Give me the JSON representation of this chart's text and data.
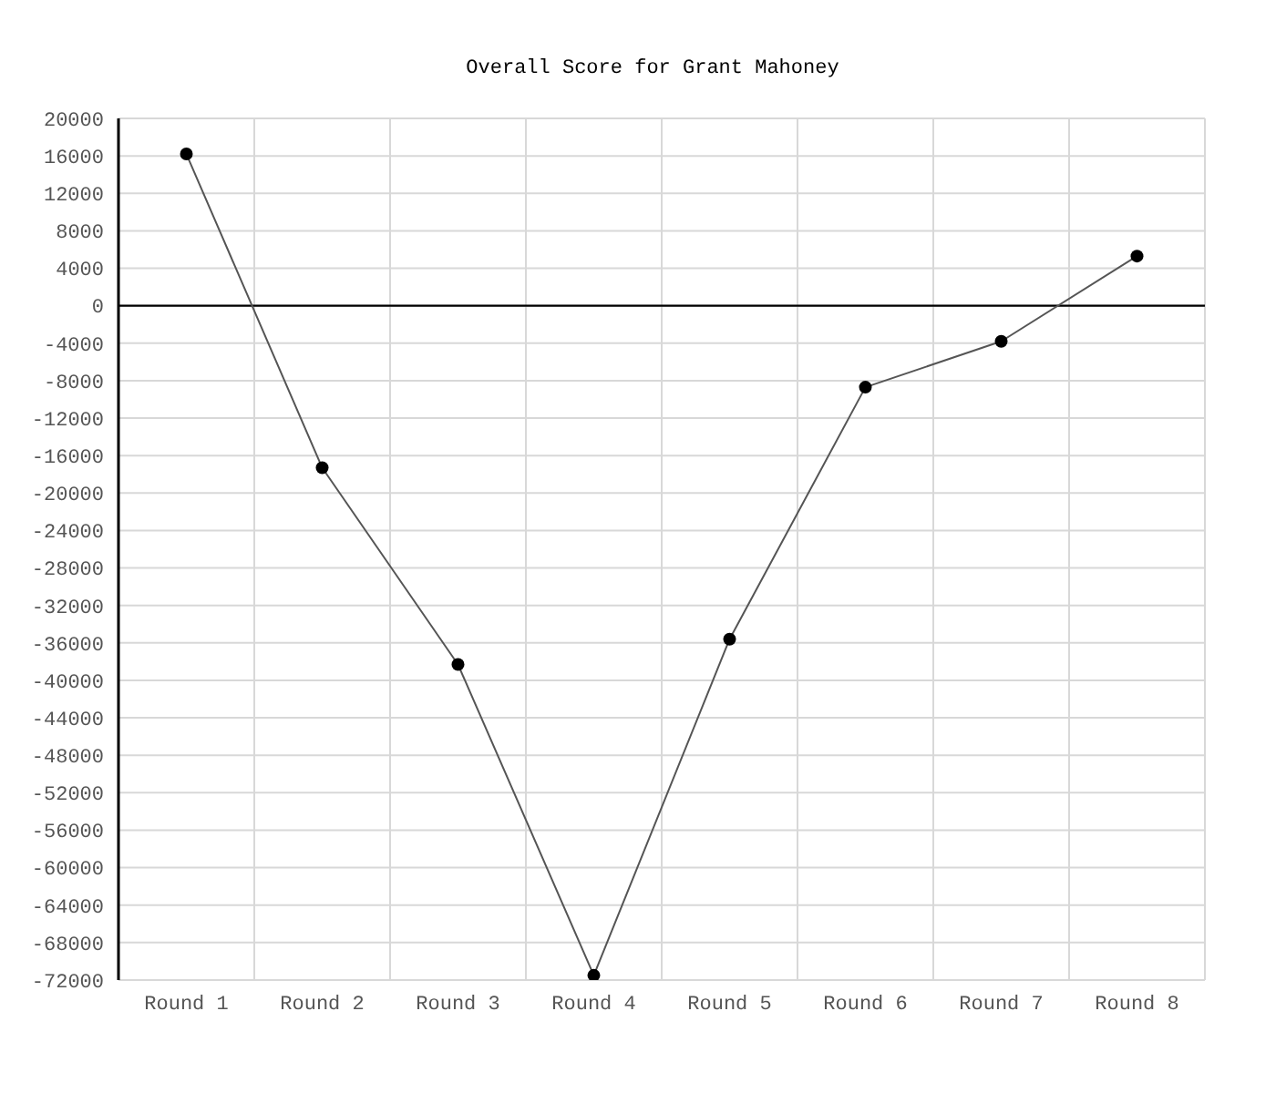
{
  "chart_data": {
    "type": "line",
    "title": "Overall Score for Grant Mahoney",
    "categories": [
      "Round 1",
      "Round 2",
      "Round 3",
      "Round 4",
      "Round 5",
      "Round 6",
      "Round 7",
      "Round 8"
    ],
    "series": [
      {
        "color": "#000000",
        "values": [
          16200,
          -17300,
          -38300,
          -71500,
          -35600,
          -8700,
          -3800,
          5300
        ]
      }
    ],
    "ylim": [
      -72000,
      20000
    ],
    "yticks": [
      -72000,
      -68000,
      -64000,
      -60000,
      -56000,
      -52000,
      -48000,
      -44000,
      -40000,
      -36000,
      -32000,
      -28000,
      -24000,
      -20000,
      -16000,
      -12000,
      -8000,
      -4000,
      0,
      4000,
      8000,
      12000,
      16000,
      20000
    ],
    "grid": true,
    "marker": "circle",
    "line_style": "solid",
    "ref_lines": [
      {
        "axis": "y",
        "value": 0,
        "color": "#000000"
      }
    ]
  }
}
